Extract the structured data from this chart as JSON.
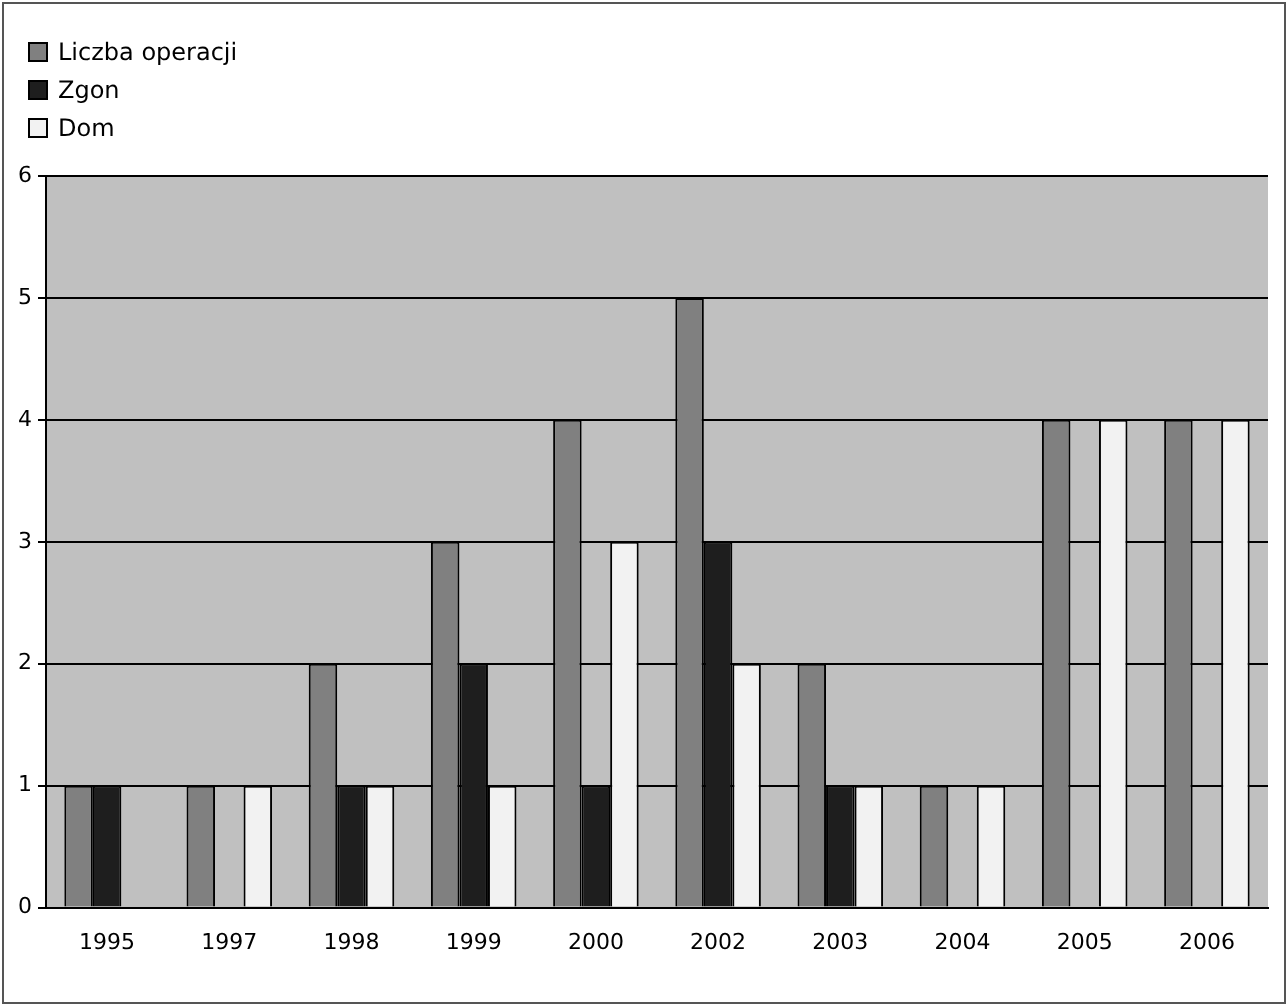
{
  "chart_data": {
    "type": "bar",
    "categories": [
      "1995",
      "1997",
      "1998",
      "1999",
      "2000",
      "2002",
      "2003",
      "2004",
      "2005",
      "2006"
    ],
    "series": [
      {
        "name": "Liczba operacji",
        "color": "#808080",
        "values": [
          1,
          1,
          2,
          3,
          4,
          5,
          2,
          1,
          4,
          4
        ]
      },
      {
        "name": "Zgon",
        "color": "#1e1e1e",
        "values": [
          1,
          0,
          1,
          2,
          1,
          3,
          1,
          0,
          0,
          0
        ]
      },
      {
        "name": "Dom",
        "color": "#f2f2f2",
        "values": [
          0,
          1,
          1,
          1,
          3,
          2,
          1,
          1,
          4,
          4
        ]
      }
    ],
    "ylim": [
      0,
      6
    ],
    "yticks": [
      0,
      1,
      2,
      3,
      4,
      5,
      6
    ],
    "grid": "y",
    "legend": "top left"
  }
}
